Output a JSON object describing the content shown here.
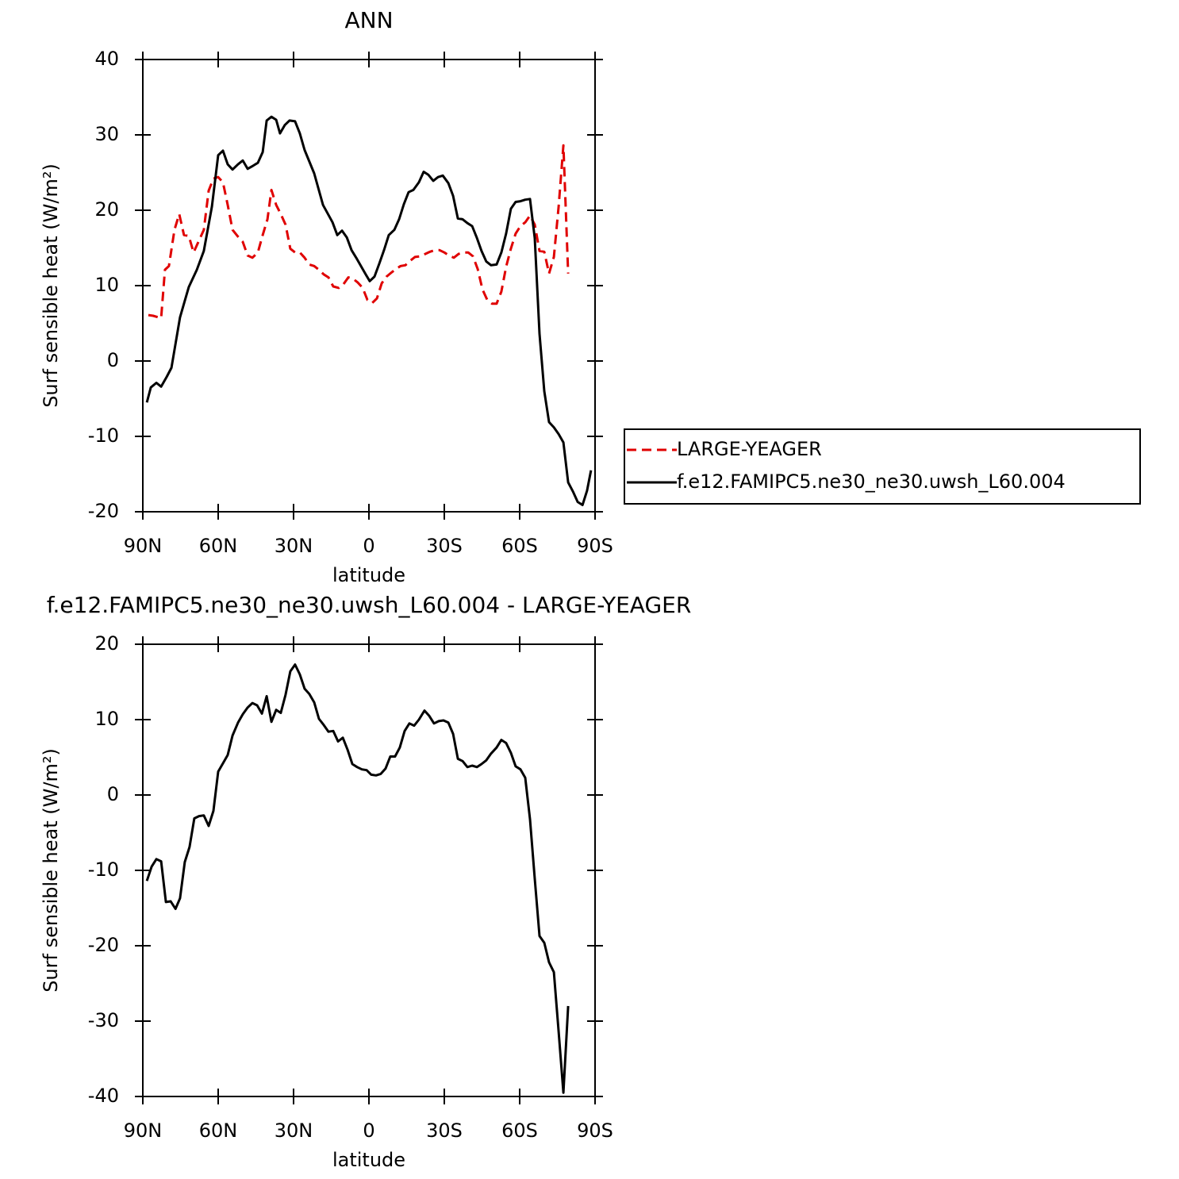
{
  "chart_data": [
    {
      "type": "line",
      "title": "ANN",
      "xlabel": "latitude",
      "ylabel": "Surf sensible heat (W/m²)",
      "xlim": [
        90,
        -90
      ],
      "xticks": [
        {
          "value": 90,
          "label": "90N"
        },
        {
          "value": 60,
          "label": "60N"
        },
        {
          "value": 30,
          "label": "30N"
        },
        0,
        {
          "value": -30,
          "label": "30S"
        },
        {
          "value": -60,
          "label": "60S"
        },
        {
          "value": -90,
          "label": "90S"
        }
      ],
      "ylim": [
        -20,
        40
      ],
      "yticks": [
        -20,
        -10,
        0,
        10,
        20,
        30,
        40
      ],
      "legend": "outside-right",
      "series": [
        {
          "name": "LARGE-YEAGER",
          "color": "#e00000",
          "style": "dashed",
          "x": [
            87.8,
            85.9,
            82.7,
            81.2,
            79.6,
            77.4,
            75.5,
            73.6,
            71.7,
            69.8,
            67.9,
            65.7,
            63.8,
            61.9,
            60.0,
            58.1,
            56.2,
            54.3,
            52.1,
            50.2,
            48.3,
            46.4,
            44.2,
            42.3,
            40.4,
            38.8,
            36.9,
            35.1,
            33.2,
            31.3,
            29.4,
            27.5,
            25.6,
            23.7,
            21.8,
            19.9,
            18.0,
            16.1,
            14.2,
            12.0,
            10.1,
            8.2,
            6.3,
            4.4,
            2.5,
            0.6,
            -1.3,
            -3.2,
            -5.1,
            -7.0,
            -8.8,
            -10.7,
            -12.6,
            -14.5,
            -16.4,
            -18.3,
            -20.5,
            -22.4,
            -24.3,
            -26.2,
            -28.1,
            -30.0,
            -31.9,
            -33.8,
            -35.7,
            -37.6,
            -39.5,
            -41.4,
            -43.3,
            -45.2,
            -47.1,
            -49.0,
            -50.8,
            -52.7,
            -54.6,
            -56.5,
            -58.4,
            -60.3,
            -62.2,
            -64.1,
            -66.0,
            -67.9,
            -69.8,
            -71.7,
            -73.6,
            -75.5,
            -77.4,
            -79.3
          ],
          "values": [
            6.1,
            6.0,
            5.7,
            12.1,
            12.6,
            17.4,
            19.5,
            16.7,
            16.6,
            14.4,
            15.8,
            17.4,
            22.6,
            24.2,
            24.4,
            23.7,
            20.7,
            17.4,
            16.5,
            15.8,
            14.0,
            13.7,
            14.4,
            16.7,
            18.8,
            22.7,
            20.7,
            19.5,
            18.1,
            14.9,
            14.4,
            14.4,
            13.7,
            12.8,
            12.6,
            12.1,
            11.5,
            11.1,
            9.9,
            9.7,
            10.2,
            11.1,
            10.9,
            10.4,
            9.7,
            8.1,
            7.7,
            8.3,
            10.3,
            11.2,
            11.7,
            12.2,
            12.6,
            12.7,
            13.3,
            13.8,
            13.9,
            14.2,
            14.5,
            14.7,
            14.7,
            14.4,
            14.0,
            13.7,
            14.2,
            14.4,
            14.4,
            13.9,
            12.2,
            9.5,
            8.1,
            7.6,
            7.6,
            9.2,
            12.5,
            14.9,
            16.9,
            17.9,
            18.4,
            19.3,
            18.1,
            14.6,
            14.5,
            11.6,
            13.8,
            20.5,
            28.6,
            11.6
          ]
        },
        {
          "name": "f.e12.FAMIPC5.ne30_ne30.uwsh_L60.004",
          "color": "#000000",
          "style": "solid",
          "x": [
            88.4,
            86.8,
            84.6,
            82.7,
            80.5,
            78.6,
            75.2,
            71.7,
            68.5,
            65.7,
            62.5,
            60.0,
            58.1,
            56.2,
            54.3,
            52.1,
            50.2,
            48.3,
            46.1,
            44.2,
            42.3,
            40.7,
            38.8,
            36.9,
            35.4,
            33.5,
            31.6,
            29.4,
            27.5,
            25.6,
            21.8,
            18.3,
            14.5,
            12.6,
            10.7,
            8.8,
            6.9,
            5.1,
            3.2,
            1.3,
            -0.3,
            -2.2,
            -4.1,
            -6.0,
            -7.9,
            -10.1,
            -12.0,
            -13.9,
            -15.8,
            -17.7,
            -19.9,
            -21.8,
            -23.7,
            -25.6,
            -27.5,
            -29.4,
            -31.6,
            -33.5,
            -35.4,
            -37.3,
            -39.2,
            -41.1,
            -43.0,
            -44.8,
            -46.7,
            -48.6,
            -50.8,
            -52.7,
            -54.6,
            -56.5,
            -58.4,
            -60.3,
            -62.2,
            -64.1,
            -66.0,
            -67.9,
            -69.8,
            -71.7,
            -73.6,
            -75.5,
            -77.4,
            -79.3,
            -81.2,
            -83.1,
            -85.0,
            -86.8,
            -88.4
          ],
          "values": [
            -5.5,
            -3.5,
            -2.9,
            -3.4,
            -2.1,
            -0.9,
            5.8,
            9.8,
            12.1,
            14.6,
            20.5,
            27.3,
            27.9,
            26.1,
            25.4,
            26.1,
            26.6,
            25.5,
            25.9,
            26.3,
            27.7,
            31.9,
            32.4,
            32.0,
            30.2,
            31.3,
            31.9,
            31.8,
            30.2,
            28.0,
            24.9,
            20.7,
            18.4,
            16.7,
            17.3,
            16.4,
            14.7,
            13.7,
            12.6,
            11.5,
            10.6,
            11.2,
            12.9,
            14.7,
            16.7,
            17.4,
            18.8,
            20.8,
            22.4,
            22.7,
            23.7,
            25.1,
            24.7,
            23.9,
            24.4,
            24.6,
            23.6,
            21.9,
            18.9,
            18.8,
            18.3,
            17.9,
            16.3,
            14.6,
            13.2,
            12.7,
            12.8,
            14.4,
            16.9,
            20.2,
            21.1,
            21.2,
            21.4,
            21.5,
            16.3,
            3.6,
            -4.0,
            -8.1,
            -8.8,
            -9.7,
            -10.8,
            -16.1,
            -17.3,
            -18.7,
            -19.1,
            -17.2,
            -14.5
          ]
        }
      ]
    },
    {
      "type": "line",
      "title": "f.e12.FAMIPC5.ne30_ne30.uwsh_L60.004 - LARGE-YEAGER",
      "xlabel": "latitude",
      "ylabel": "Surf sensible heat (W/m²)",
      "xlim": [
        90,
        -90
      ],
      "xticks": [
        {
          "value": 90,
          "label": "90N"
        },
        {
          "value": 60,
          "label": "60N"
        },
        {
          "value": 30,
          "label": "30N"
        },
        0,
        {
          "value": -30,
          "label": "30S"
        },
        {
          "value": -60,
          "label": "60S"
        },
        {
          "value": -90,
          "label": "90S"
        }
      ],
      "ylim": [
        -40,
        20
      ],
      "yticks": [
        -40,
        -30,
        -20,
        -10,
        0,
        10,
        20
      ],
      "series": [
        {
          "color": "#000000",
          "style": "solid",
          "x": [
            88.4,
            86.5,
            84.6,
            82.7,
            80.8,
            78.9,
            77.0,
            75.2,
            73.3,
            71.4,
            69.5,
            67.6,
            65.7,
            63.8,
            61.9,
            60.0,
            58.1,
            56.2,
            54.3,
            52.1,
            50.2,
            48.3,
            46.4,
            44.5,
            42.6,
            40.7,
            38.8,
            36.9,
            35.1,
            33.2,
            31.3,
            29.4,
            27.5,
            25.6,
            23.7,
            21.8,
            19.9,
            18.0,
            16.1,
            14.2,
            12.3,
            10.4,
            8.5,
            6.6,
            4.7,
            2.8,
            0.9,
            -0.9,
            -2.8,
            -4.7,
            -6.6,
            -8.5,
            -10.4,
            -12.3,
            -14.2,
            -16.1,
            -18.0,
            -19.9,
            -22.1,
            -24.0,
            -25.9,
            -27.8,
            -29.7,
            -31.6,
            -33.5,
            -35.4,
            -37.3,
            -39.2,
            -41.1,
            -43.0,
            -44.8,
            -46.7,
            -48.6,
            -50.8,
            -52.7,
            -54.6,
            -56.5,
            -58.4,
            -60.3,
            -62.2,
            -64.1,
            -66.0,
            -67.9,
            -69.8,
            -71.7,
            -73.6,
            -75.5,
            -77.4,
            -79.3
          ],
          "values": [
            -11.4,
            -9.5,
            -8.5,
            -8.8,
            -14.2,
            -14.1,
            -15.1,
            -13.7,
            -8.9,
            -6.9,
            -3.1,
            -2.8,
            -2.7,
            -4.1,
            -2.1,
            3.1,
            4.2,
            5.3,
            7.9,
            9.6,
            10.7,
            11.6,
            12.2,
            11.9,
            10.8,
            13.1,
            9.7,
            11.3,
            10.9,
            13.3,
            16.4,
            17.3,
            16.0,
            14.1,
            13.4,
            12.3,
            10.1,
            9.3,
            8.4,
            8.5,
            7.1,
            7.6,
            6.0,
            4.1,
            3.7,
            3.4,
            3.3,
            2.7,
            2.6,
            2.8,
            3.5,
            5.1,
            5.1,
            6.3,
            8.5,
            9.5,
            9.2,
            10.0,
            11.2,
            10.5,
            9.5,
            9.8,
            9.9,
            9.6,
            8.1,
            4.8,
            4.5,
            3.7,
            3.9,
            3.7,
            4.1,
            4.6,
            5.5,
            6.3,
            7.3,
            6.9,
            5.6,
            3.8,
            3.4,
            2.3,
            -3.2,
            -11.1,
            -18.7,
            -19.6,
            -22.2,
            -23.5,
            -31.4,
            -39.5,
            -28.0
          ]
        }
      ]
    }
  ]
}
